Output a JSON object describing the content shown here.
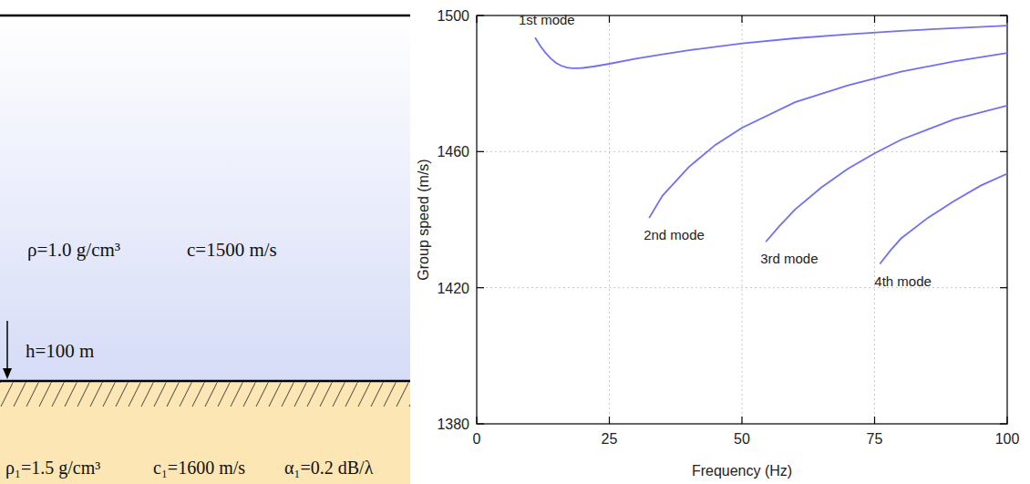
{
  "diagram": {
    "water": {
      "density": "ρ=1.0 g/cm³",
      "speed": "c=1500 m/s"
    },
    "depth": "h=100 m",
    "bottom": {
      "density": "ρ₁=1.5 g/cm³",
      "speed": "c₁=1600 m/s",
      "attenuation": "α₁=0.2 dB/λ"
    }
  },
  "chart_data": {
    "type": "line",
    "x_label": "Frequency (Hz)",
    "y_label": "Group speed (m/s)",
    "xlim": [
      0,
      100
    ],
    "xticks": [
      0,
      25,
      50,
      75,
      100
    ],
    "ylim": [
      1380,
      1500
    ],
    "yticks": [
      1380,
      1420,
      1460,
      1500
    ],
    "grid": true,
    "series": [
      {
        "name": "1st mode",
        "color": "#7070f0",
        "x": [
          11,
          12,
          13,
          14,
          15,
          16,
          17,
          18,
          19,
          20,
          22,
          25,
          30,
          35,
          40,
          50,
          60,
          70,
          80,
          90,
          100
        ],
        "values": [
          1493.5,
          1491,
          1489,
          1487.3,
          1486,
          1485.2,
          1484.7,
          1484.5,
          1484.5,
          1484.6,
          1485,
          1485.8,
          1487.3,
          1488.6,
          1489.8,
          1491.8,
          1493.3,
          1494.5,
          1495.5,
          1496.3,
          1497
        ]
      },
      {
        "name": "2nd mode",
        "color": "#7070f0",
        "x": [
          32.5,
          35,
          40,
          45,
          50,
          60,
          70,
          80,
          90,
          100
        ],
        "values": [
          1440.5,
          1447,
          1455.5,
          1462,
          1467,
          1474.5,
          1479.5,
          1483.5,
          1486.5,
          1489
        ]
      },
      {
        "name": "3rd mode",
        "color": "#7070f0",
        "x": [
          54.5,
          57,
          60,
          65,
          70,
          75,
          80,
          90,
          100
        ],
        "values": [
          1433.5,
          1438,
          1443,
          1449.5,
          1455,
          1459.5,
          1463.5,
          1469.5,
          1473.5
        ]
      },
      {
        "name": "4th mode",
        "color": "#7070f0",
        "x": [
          76,
          78,
          80,
          85,
          90,
          95,
          100
        ],
        "values": [
          1427,
          1431,
          1434.5,
          1440.5,
          1445.5,
          1450,
          1453.5
        ]
      }
    ]
  }
}
